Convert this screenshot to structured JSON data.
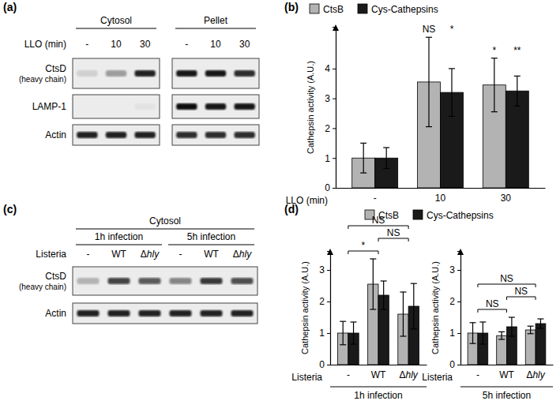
{
  "chart_data": [
    {
      "type": "blot",
      "panel": "(a)",
      "lane_title": "LLO (min)",
      "groups": [
        {
          "label": "Cytosol",
          "lanes": [
            "-",
            "10",
            "30"
          ]
        },
        {
          "label": "Pellet",
          "lanes": [
            "-",
            "10",
            "30"
          ]
        }
      ],
      "rows": [
        {
          "name": "CtsD",
          "note": "(heavy chain)",
          "intensity": [
            0.12,
            0.35,
            0.9,
            0.95,
            0.95,
            0.85
          ]
        },
        {
          "name": "LAMP-1",
          "intensity": [
            0,
            0,
            0.04,
            1,
            0.95,
            0.95
          ]
        },
        {
          "name": "Actin",
          "intensity": [
            0.9,
            0.9,
            0.9,
            0.85,
            0.85,
            0.85
          ]
        }
      ]
    },
    {
      "type": "bar",
      "panel": "(b)",
      "xlabel": "LLO (min)",
      "ylabel": "Cathepsin activity (A.U.)",
      "categories": [
        "-",
        "10",
        "30"
      ],
      "series": [
        {
          "name": "CtsB",
          "color": "#b3b3b3",
          "values": [
            1,
            3.55,
            3.45
          ],
          "errors": [
            0.5,
            1.5,
            0.9
          ],
          "significance": [
            null,
            "NS",
            "*"
          ]
        },
        {
          "name": "Cys-Cathepsins",
          "color": "#1a1a1a",
          "values": [
            1,
            3.2,
            3.25
          ],
          "errors": [
            0.35,
            0.8,
            0.5
          ],
          "significance": [
            null,
            "*",
            "**"
          ]
        }
      ],
      "ylim": [
        0,
        5.4
      ],
      "yticks": [
        0,
        1,
        2,
        3,
        4
      ],
      "legend": "top"
    },
    {
      "type": "blot",
      "panel": "(c)",
      "header": "Cytosol",
      "lane_title": "Listeria",
      "groups": [
        {
          "label": "1h infection",
          "lanes": [
            "-",
            "WT",
            "Δhly"
          ]
        },
        {
          "label": "5h infection",
          "lanes": [
            "-",
            "WT",
            "Δhly"
          ]
        }
      ],
      "rows": [
        {
          "name": "CtsD",
          "note": "(heavy chain)",
          "intensity": [
            0.25,
            0.75,
            0.65,
            0.45,
            0.8,
            0.7
          ]
        },
        {
          "name": "Actin",
          "intensity": [
            0.9,
            0.9,
            0.9,
            0.9,
            0.9,
            0.9
          ]
        }
      ]
    },
    {
      "type": "bar",
      "panel": "(d)",
      "xlabel": "Listeria",
      "ylabel": "Cathepsin activity (A.U.)",
      "categories": [
        "-",
        "WT",
        "Δhly"
      ],
      "series": [
        {
          "name": "CtsB",
          "color": "#b3b3b3"
        },
        {
          "name": "Cys-Cathepsins",
          "color": "#1a1a1a"
        }
      ],
      "ylim": [
        0,
        3.6
      ],
      "yticks": [
        0,
        1,
        2,
        3
      ],
      "legend": "top",
      "facets": [
        {
          "title": "1h infection",
          "series": [
            {
              "values": [
                1,
                2.55,
                1.6
              ],
              "errors": [
                0.37,
                0.8,
                0.7
              ]
            },
            {
              "values": [
                1,
                2.2,
                1.85
              ],
              "errors": [
                0.35,
                0.45,
                0.72
              ]
            }
          ],
          "comparisons": [
            {
              "from": "-",
              "to": "WT",
              "label": "*"
            },
            {
              "from": "WT",
              "to": "Δhly",
              "label": "NS"
            },
            {
              "from": "-",
              "to": "Δhly",
              "label": "NS"
            }
          ]
        },
        {
          "title": "5h infection",
          "series": [
            {
              "values": [
                1,
                0.92,
                1.1
              ],
              "errors": [
                0.33,
                0.12,
                0.12
              ]
            },
            {
              "values": [
                1,
                1.2,
                1.3
              ],
              "errors": [
                0.35,
                0.3,
                0.15
              ]
            }
          ],
          "comparisons": [
            {
              "from": "-",
              "to": "WT",
              "label": "NS"
            },
            {
              "from": "WT",
              "to": "Δhly",
              "label": "NS"
            },
            {
              "from": "-",
              "to": "Δhly",
              "label": "NS"
            }
          ]
        }
      ]
    }
  ]
}
